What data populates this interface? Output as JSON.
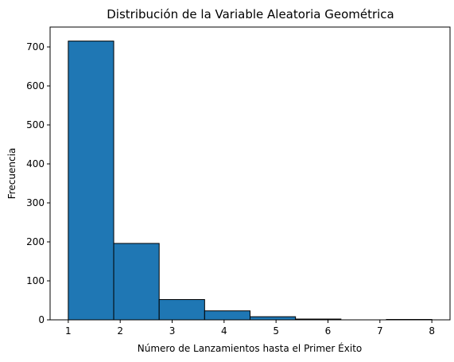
{
  "chart_data": {
    "type": "bar",
    "title": "Distribución de la Variable Aleatoria Geométrica",
    "xlabel": "Número de Lanzamientos hasta el Primer Éxito",
    "ylabel": "Frecuencia",
    "bin_edges": [
      1,
      1.875,
      2.75,
      3.625,
      4.5,
      5.375,
      6.25,
      7.125,
      8
    ],
    "values": [
      715,
      196,
      52,
      23,
      8,
      2,
      0,
      1
    ],
    "xlim": [
      0.65,
      8.35
    ],
    "ylim": [
      0,
      751
    ],
    "xticks": [
      1,
      2,
      3,
      4,
      5,
      6,
      7,
      8
    ],
    "yticks": [
      0,
      100,
      200,
      300,
      400,
      500,
      600,
      700
    ],
    "bar_color": "#1f77b4",
    "edge_color": "#000000",
    "grid": false,
    "legend": "none"
  }
}
